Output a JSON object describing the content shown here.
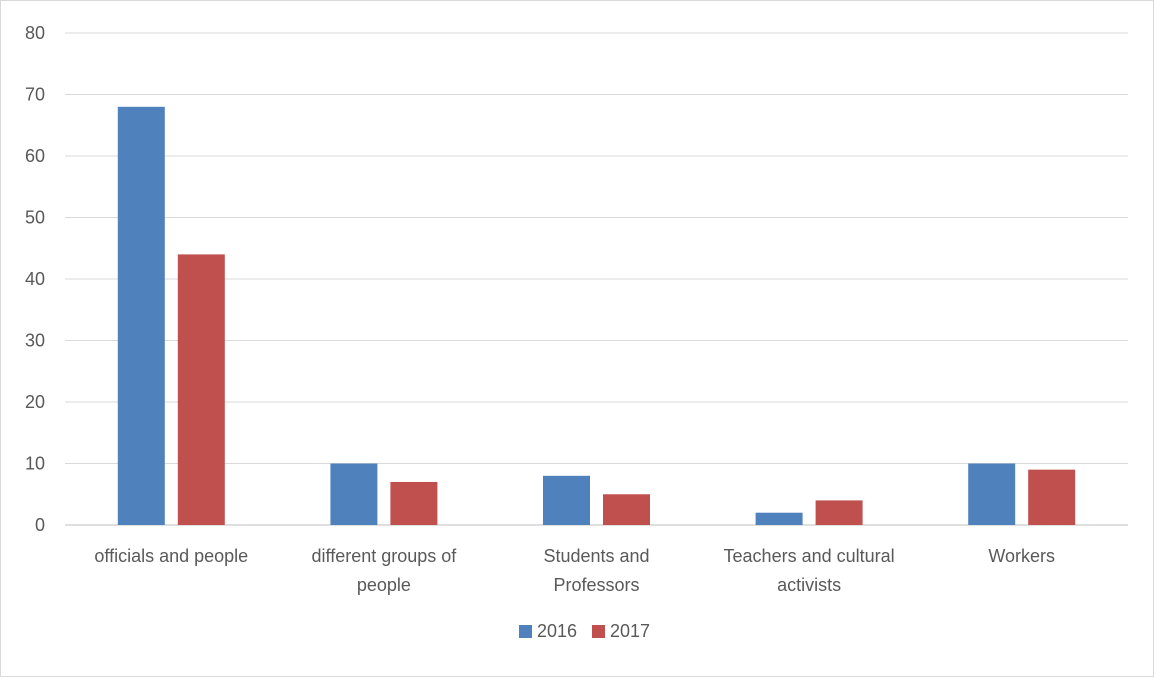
{
  "chart_data": {
    "type": "bar",
    "categories": [
      [
        "officials and people"
      ],
      [
        "different groups of",
        "people"
      ],
      [
        "Students and",
        "Professors"
      ],
      [
        "Teachers and cultural",
        "activists"
      ],
      [
        "Workers"
      ]
    ],
    "series": [
      {
        "name": "2016",
        "color": "#4f81bd",
        "values": [
          68,
          10,
          8,
          2,
          10
        ]
      },
      {
        "name": "2017",
        "color": "#c0504d",
        "values": [
          44,
          7,
          5,
          4,
          9
        ]
      }
    ],
    "title": "",
    "xlabel": "",
    "ylabel": "",
    "ylim": [
      0,
      80
    ],
    "yticks": [
      "0",
      "10",
      "20",
      "30",
      "40",
      "50",
      "60",
      "70",
      "80"
    ],
    "grid": true,
    "legend_position": "bottom"
  }
}
